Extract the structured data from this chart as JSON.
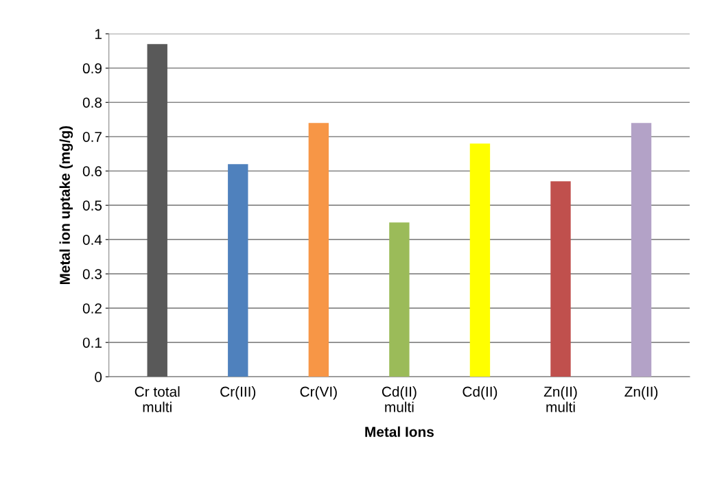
{
  "chart_data": {
    "type": "bar",
    "xlabel": "Metal Ions",
    "ylabel": "Metal ion uptake (mg/g)",
    "categories": [
      "Cr total\nmulti",
      "Cr(III)",
      "Cr(VI)",
      "Cd(II)\nmulti",
      "Cd(II)",
      "Zn(II)\nmulti",
      "Zn(II)"
    ],
    "values": [
      0.97,
      0.62,
      0.74,
      0.45,
      0.68,
      0.57,
      0.74
    ],
    "colors": [
      "#595959",
      "#4f81bd",
      "#f79646",
      "#9bbb59",
      "#ffff00",
      "#c0504d",
      "#b3a2c7"
    ],
    "ylim": [
      0,
      1
    ],
    "yticks": [
      0,
      0.1,
      0.2,
      0.3,
      0.4,
      0.5,
      0.6,
      0.7,
      0.8,
      0.9,
      1
    ],
    "grid": "y",
    "legend": false
  }
}
